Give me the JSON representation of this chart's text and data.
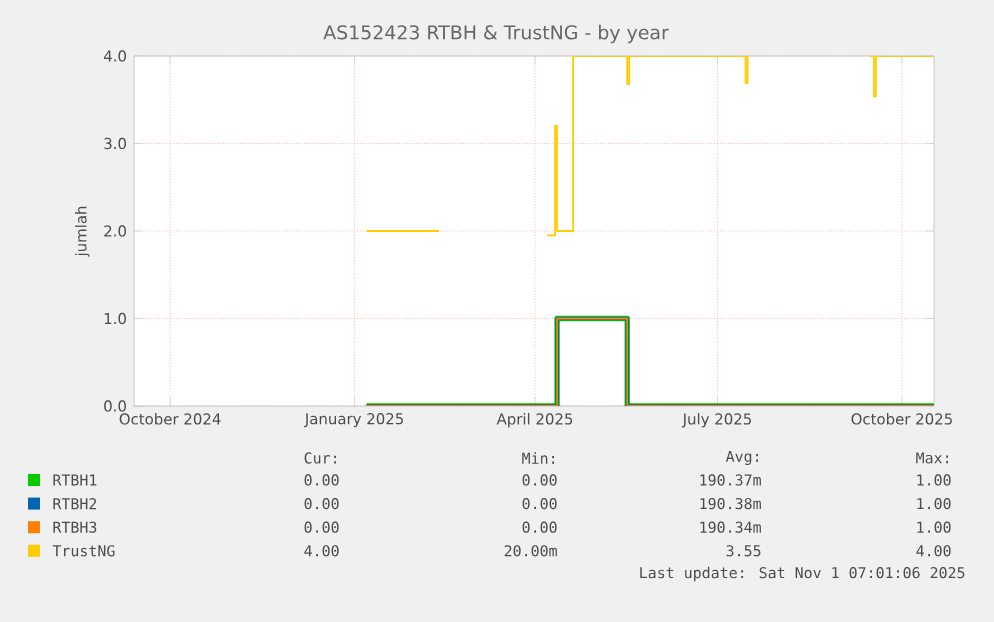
{
  "chart_data": {
    "type": "step",
    "title": "AS152423 RTBH & TrustNG - by year",
    "ylabel": "jumlah",
    "xlim": [
      "2024-09-28",
      "2025-11-01"
    ],
    "xticks": [
      {
        "value": "2024-10-16",
        "label": "October 2024"
      },
      {
        "value": "2025-01-16",
        "label": "January 2025"
      },
      {
        "value": "2025-04-16",
        "label": "April 2025"
      },
      {
        "value": "2025-07-16",
        "label": "July 2025"
      },
      {
        "value": "2025-10-16",
        "label": "October 2025"
      }
    ],
    "ylim": [
      0,
      4
    ],
    "yticks": [
      {
        "value": 0,
        "label": "0.0"
      },
      {
        "value": 1,
        "label": "1.0"
      },
      {
        "value": 2,
        "label": "2.0"
      },
      {
        "value": 3,
        "label": "3.0"
      },
      {
        "value": 4,
        "label": "4.0"
      }
    ],
    "grid": true,
    "legend": "bottom",
    "series": [
      {
        "name": "RTBH1",
        "color": "#00cc00",
        "x": [
          "2025-01-22",
          "2025-04-27",
          "2025-06-01",
          "2025-11-01"
        ],
        "values": [
          0,
          1,
          0,
          0
        ]
      },
      {
        "name": "RTBH2",
        "color": "#0066b3",
        "x": [
          "2025-01-22",
          "2025-04-27",
          "2025-06-01",
          "2025-11-01"
        ],
        "values": [
          0,
          1,
          0,
          0
        ]
      },
      {
        "name": "RTBH3",
        "color": "#ff8000",
        "x": [
          "2025-01-22",
          "2025-04-27",
          "2025-06-01",
          "2025-11-01"
        ],
        "values": [
          0,
          1,
          0,
          0
        ]
      },
      {
        "name": "TrustNG",
        "color": "#ffcc00",
        "x": [
          "2025-01-22",
          "2025-02-27",
          "2025-02-28",
          "2025-04-22",
          "2025-04-26",
          "2025-04-27",
          "2025-05-05",
          "2025-06-01",
          "2025-06-02",
          "2025-07-30",
          "2025-07-31",
          "2025-08-25",
          "2025-09-30",
          "2025-10-02",
          "2025-10-03",
          "2025-11-01"
        ],
        "values": [
          2.0,
          2.0,
          null,
          1.95,
          3.2,
          2.0,
          4.0,
          3.68,
          4.0,
          3.69,
          4.0,
          null,
          4.0,
          3.54,
          4.0,
          4.0
        ]
      }
    ],
    "annotations": [
      "Cur:",
      "Min:",
      "Avg:",
      "Max:",
      "0.00",
      "0.00",
      "190.37m",
      "1.00",
      "0.00",
      "0.00",
      "190.38m",
      "1.00",
      "0.00",
      "0.00",
      "190.34m",
      "1.00",
      "4.00",
      "20.00m",
      "3.55",
      "4.00",
      "Last update: Sat Nov  1 07:01:06 2025"
    ]
  }
}
